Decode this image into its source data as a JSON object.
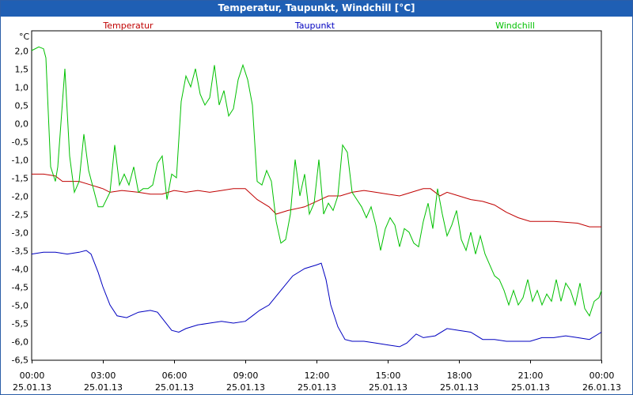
{
  "window": {
    "title": "Temperatur, Taupunkt, Windchill [°C]"
  },
  "chart_data": {
    "type": "line",
    "title": "Temperatur, Taupunkt, Windchill [°C]",
    "ylabel": "°C",
    "xlabel": "",
    "ylim": [
      -6.5,
      2.0
    ],
    "yticks": [
      "2,0",
      "1,5",
      "1,0",
      "0,5",
      "0,0",
      "-0,5",
      "-1,0",
      "-1,5",
      "-2,0",
      "-2,5",
      "-3,0",
      "-3,5",
      "-4,0",
      "-4,5",
      "-5,0",
      "-5,5",
      "-6,0",
      "-6,5"
    ],
    "xticks": [
      {
        "time": "00:00",
        "date": "25.01.13"
      },
      {
        "time": "03:00",
        "date": "25.01.13"
      },
      {
        "time": "06:00",
        "date": "25.01.13"
      },
      {
        "time": "09:00",
        "date": "25.01.13"
      },
      {
        "time": "12:00",
        "date": "25.01.13"
      },
      {
        "time": "15:00",
        "date": "25.01.13"
      },
      {
        "time": "18:00",
        "date": "25.01.13"
      },
      {
        "time": "21:00",
        "date": "25.01.13"
      },
      {
        "time": "00:00",
        "date": "26.01.13"
      }
    ],
    "xlim_hours": [
      0,
      24
    ],
    "grid": true,
    "legend_position": "top",
    "series": [
      {
        "name": "Temperatur",
        "color": "#c00000",
        "points": [
          [
            0,
            -1.4
          ],
          [
            0.5,
            -1.4
          ],
          [
            1,
            -1.45
          ],
          [
            1.3,
            -1.6
          ],
          [
            2,
            -1.6
          ],
          [
            2.5,
            -1.7
          ],
          [
            3,
            -1.8
          ],
          [
            3.3,
            -1.9
          ],
          [
            3.8,
            -1.85
          ],
          [
            4.5,
            -1.9
          ],
          [
            5,
            -1.95
          ],
          [
            5.5,
            -1.95
          ],
          [
            6,
            -1.85
          ],
          [
            6.5,
            -1.9
          ],
          [
            7,
            -1.85
          ],
          [
            7.5,
            -1.9
          ],
          [
            8,
            -1.85
          ],
          [
            8.5,
            -1.8
          ],
          [
            9,
            -1.8
          ],
          [
            9.5,
            -2.1
          ],
          [
            10,
            -2.3
          ],
          [
            10.3,
            -2.5
          ],
          [
            10.8,
            -2.4
          ],
          [
            11.5,
            -2.3
          ],
          [
            12,
            -2.15
          ],
          [
            12.5,
            -2.0
          ],
          [
            13,
            -2.0
          ],
          [
            13.5,
            -1.9
          ],
          [
            14,
            -1.85
          ],
          [
            14.5,
            -1.9
          ],
          [
            15,
            -1.95
          ],
          [
            15.5,
            -2.0
          ],
          [
            16,
            -1.9
          ],
          [
            16.5,
            -1.8
          ],
          [
            16.8,
            -1.8
          ],
          [
            17.2,
            -2.0
          ],
          [
            17.5,
            -1.9
          ],
          [
            18,
            -2.0
          ],
          [
            18.5,
            -2.1
          ],
          [
            19,
            -2.15
          ],
          [
            19.5,
            -2.25
          ],
          [
            20,
            -2.45
          ],
          [
            20.5,
            -2.6
          ],
          [
            21,
            -2.7
          ],
          [
            22,
            -2.7
          ],
          [
            23,
            -2.75
          ],
          [
            23.5,
            -2.85
          ],
          [
            24,
            -2.85
          ]
        ]
      },
      {
        "name": "Taupunkt",
        "color": "#0000c0",
        "points": [
          [
            0,
            -3.6
          ],
          [
            0.5,
            -3.55
          ],
          [
            1,
            -3.55
          ],
          [
            1.5,
            -3.6
          ],
          [
            2,
            -3.55
          ],
          [
            2.3,
            -3.5
          ],
          [
            2.5,
            -3.6
          ],
          [
            2.8,
            -4.1
          ],
          [
            3,
            -4.5
          ],
          [
            3.3,
            -5.0
          ],
          [
            3.6,
            -5.3
          ],
          [
            4,
            -5.35
          ],
          [
            4.5,
            -5.2
          ],
          [
            5,
            -5.15
          ],
          [
            5.3,
            -5.2
          ],
          [
            5.6,
            -5.45
          ],
          [
            5.9,
            -5.7
          ],
          [
            6.2,
            -5.75
          ],
          [
            6.5,
            -5.65
          ],
          [
            7,
            -5.55
          ],
          [
            7.5,
            -5.5
          ],
          [
            8,
            -5.45
          ],
          [
            8.5,
            -5.5
          ],
          [
            9,
            -5.45
          ],
          [
            9.3,
            -5.3
          ],
          [
            9.6,
            -5.15
          ],
          [
            10,
            -5.0
          ],
          [
            10.5,
            -4.6
          ],
          [
            11,
            -4.2
          ],
          [
            11.5,
            -4.0
          ],
          [
            12,
            -3.9
          ],
          [
            12.2,
            -3.85
          ],
          [
            12.4,
            -4.3
          ],
          [
            12.6,
            -5.0
          ],
          [
            12.9,
            -5.6
          ],
          [
            13.2,
            -5.95
          ],
          [
            13.5,
            -6.0
          ],
          [
            14,
            -6.0
          ],
          [
            14.5,
            -6.05
          ],
          [
            15,
            -6.1
          ],
          [
            15.5,
            -6.15
          ],
          [
            15.8,
            -6.05
          ],
          [
            16.2,
            -5.8
          ],
          [
            16.5,
            -5.9
          ],
          [
            17,
            -5.85
          ],
          [
            17.5,
            -5.65
          ],
          [
            18,
            -5.7
          ],
          [
            18.5,
            -5.75
          ],
          [
            19,
            -5.95
          ],
          [
            19.5,
            -5.95
          ],
          [
            20,
            -6.0
          ],
          [
            20.5,
            -6.0
          ],
          [
            21,
            -6.0
          ],
          [
            21.5,
            -5.9
          ],
          [
            22,
            -5.9
          ],
          [
            22.5,
            -5.85
          ],
          [
            23,
            -5.9
          ],
          [
            23.5,
            -5.95
          ],
          [
            24,
            -5.75
          ]
        ]
      },
      {
        "name": "Windchill",
        "color": "#00c000",
        "points": [
          [
            0,
            2.0
          ],
          [
            0.3,
            2.1
          ],
          [
            0.5,
            2.05
          ],
          [
            0.6,
            1.8
          ],
          [
            0.8,
            -1.2
          ],
          [
            1,
            -1.6
          ],
          [
            1.1,
            -1.2
          ],
          [
            1.2,
            -0.3
          ],
          [
            1.4,
            1.5
          ],
          [
            1.6,
            -0.9
          ],
          [
            1.8,
            -1.9
          ],
          [
            2,
            -1.6
          ],
          [
            2.2,
            -0.3
          ],
          [
            2.4,
            -1.3
          ],
          [
            2.6,
            -1.8
          ],
          [
            2.8,
            -2.3
          ],
          [
            3,
            -2.3
          ],
          [
            3.3,
            -1.9
          ],
          [
            3.5,
            -0.6
          ],
          [
            3.7,
            -1.7
          ],
          [
            3.9,
            -1.4
          ],
          [
            4.1,
            -1.7
          ],
          [
            4.3,
            -1.2
          ],
          [
            4.5,
            -1.9
          ],
          [
            4.7,
            -1.8
          ],
          [
            4.9,
            -1.8
          ],
          [
            5.1,
            -1.7
          ],
          [
            5.3,
            -1.1
          ],
          [
            5.5,
            -0.9
          ],
          [
            5.7,
            -2.1
          ],
          [
            5.9,
            -1.4
          ],
          [
            6.1,
            -1.5
          ],
          [
            6.3,
            0.6
          ],
          [
            6.5,
            1.3
          ],
          [
            6.7,
            1.0
          ],
          [
            6.9,
            1.5
          ],
          [
            7.1,
            0.8
          ],
          [
            7.3,
            0.5
          ],
          [
            7.5,
            0.7
          ],
          [
            7.7,
            1.6
          ],
          [
            7.9,
            0.5
          ],
          [
            8.1,
            0.9
          ],
          [
            8.3,
            0.2
          ],
          [
            8.5,
            0.4
          ],
          [
            8.7,
            1.2
          ],
          [
            8.9,
            1.6
          ],
          [
            9.1,
            1.2
          ],
          [
            9.3,
            0.5
          ],
          [
            9.5,
            -1.6
          ],
          [
            9.7,
            -1.7
          ],
          [
            9.9,
            -1.3
          ],
          [
            10.1,
            -1.6
          ],
          [
            10.3,
            -2.7
          ],
          [
            10.5,
            -3.3
          ],
          [
            10.7,
            -3.2
          ],
          [
            10.9,
            -2.5
          ],
          [
            11.1,
            -1.0
          ],
          [
            11.3,
            -2.0
          ],
          [
            11.5,
            -1.4
          ],
          [
            11.7,
            -2.5
          ],
          [
            11.9,
            -2.2
          ],
          [
            12.1,
            -1.0
          ],
          [
            12.3,
            -2.5
          ],
          [
            12.5,
            -2.2
          ],
          [
            12.7,
            -2.4
          ],
          [
            12.9,
            -2.0
          ],
          [
            13.1,
            -0.6
          ],
          [
            13.3,
            -0.8
          ],
          [
            13.5,
            -1.9
          ],
          [
            13.7,
            -2.1
          ],
          [
            13.9,
            -2.3
          ],
          [
            14.1,
            -2.6
          ],
          [
            14.3,
            -2.3
          ],
          [
            14.5,
            -2.8
          ],
          [
            14.7,
            -3.5
          ],
          [
            14.9,
            -2.9
          ],
          [
            15.1,
            -2.6
          ],
          [
            15.3,
            -2.8
          ],
          [
            15.5,
            -3.4
          ],
          [
            15.7,
            -2.9
          ],
          [
            15.9,
            -3.0
          ],
          [
            16.1,
            -3.3
          ],
          [
            16.3,
            -3.4
          ],
          [
            16.5,
            -2.7
          ],
          [
            16.7,
            -2.2
          ],
          [
            16.9,
            -2.9
          ],
          [
            17.1,
            -1.8
          ],
          [
            17.3,
            -2.5
          ],
          [
            17.5,
            -3.1
          ],
          [
            17.7,
            -2.8
          ],
          [
            17.9,
            -2.4
          ],
          [
            18.1,
            -3.2
          ],
          [
            18.3,
            -3.5
          ],
          [
            18.5,
            -3.0
          ],
          [
            18.7,
            -3.6
          ],
          [
            18.9,
            -3.1
          ],
          [
            19.1,
            -3.6
          ],
          [
            19.3,
            -3.9
          ],
          [
            19.5,
            -4.2
          ],
          [
            19.7,
            -4.3
          ],
          [
            19.9,
            -4.6
          ],
          [
            20.1,
            -5.0
          ],
          [
            20.3,
            -4.6
          ],
          [
            20.5,
            -5.0
          ],
          [
            20.7,
            -4.8
          ],
          [
            20.9,
            -4.3
          ],
          [
            21.1,
            -4.9
          ],
          [
            21.3,
            -4.6
          ],
          [
            21.5,
            -5.0
          ],
          [
            21.7,
            -4.7
          ],
          [
            21.9,
            -4.9
          ],
          [
            22.1,
            -4.3
          ],
          [
            22.3,
            -4.9
          ],
          [
            22.5,
            -4.4
          ],
          [
            22.7,
            -4.6
          ],
          [
            22.9,
            -5.0
          ],
          [
            23.1,
            -4.4
          ],
          [
            23.3,
            -5.1
          ],
          [
            23.5,
            -5.3
          ],
          [
            23.7,
            -4.9
          ],
          [
            23.9,
            -4.8
          ],
          [
            24,
            -4.6
          ]
        ]
      }
    ]
  }
}
